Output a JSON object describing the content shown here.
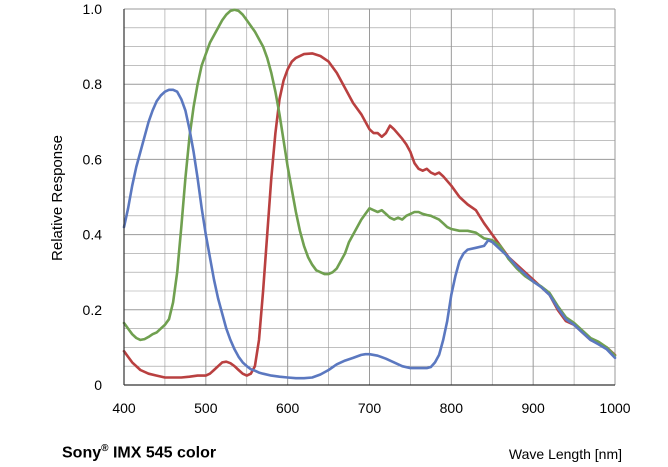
{
  "chart_data": {
    "type": "line",
    "title": "",
    "xlabel": "Wave Length [nm]",
    "ylabel": "Relative Response",
    "xlim": [
      400,
      1000
    ],
    "ylim": [
      0,
      1.0
    ],
    "xticks": [
      "400",
      "500",
      "600",
      "700",
      "800",
      "900",
      "1000"
    ],
    "yticks": [
      "0",
      "0.2",
      "0.4",
      "0.6",
      "0.8",
      "1.0"
    ],
    "grid": true,
    "colors": {
      "red": "#b94040",
      "green": "#70a050",
      "blue": "#5b78c0",
      "grid": "#9a9a9a",
      "axis": "#333333"
    },
    "series": [
      {
        "color": "#b94040",
        "points": [
          [
            400,
            0.09
          ],
          [
            410,
            0.06
          ],
          [
            420,
            0.04
          ],
          [
            430,
            0.03
          ],
          [
            440,
            0.025
          ],
          [
            450,
            0.02
          ],
          [
            460,
            0.02
          ],
          [
            470,
            0.02
          ],
          [
            480,
            0.022
          ],
          [
            490,
            0.025
          ],
          [
            500,
            0.025
          ],
          [
            505,
            0.03
          ],
          [
            510,
            0.04
          ],
          [
            515,
            0.05
          ],
          [
            520,
            0.06
          ],
          [
            525,
            0.062
          ],
          [
            530,
            0.058
          ],
          [
            535,
            0.05
          ],
          [
            540,
            0.04
          ],
          [
            545,
            0.03
          ],
          [
            550,
            0.025
          ],
          [
            555,
            0.03
          ],
          [
            560,
            0.05
          ],
          [
            565,
            0.12
          ],
          [
            570,
            0.25
          ],
          [
            575,
            0.4
          ],
          [
            580,
            0.55
          ],
          [
            585,
            0.67
          ],
          [
            590,
            0.76
          ],
          [
            595,
            0.81
          ],
          [
            600,
            0.84
          ],
          [
            605,
            0.86
          ],
          [
            610,
            0.87
          ],
          [
            620,
            0.88
          ],
          [
            630,
            0.882
          ],
          [
            640,
            0.875
          ],
          [
            650,
            0.86
          ],
          [
            660,
            0.83
          ],
          [
            670,
            0.79
          ],
          [
            680,
            0.75
          ],
          [
            690,
            0.72
          ],
          [
            700,
            0.68
          ],
          [
            705,
            0.67
          ],
          [
            710,
            0.67
          ],
          [
            715,
            0.66
          ],
          [
            720,
            0.67
          ],
          [
            725,
            0.69
          ],
          [
            730,
            0.68
          ],
          [
            740,
            0.655
          ],
          [
            745,
            0.64
          ],
          [
            750,
            0.62
          ],
          [
            755,
            0.59
          ],
          [
            760,
            0.575
          ],
          [
            765,
            0.57
          ],
          [
            770,
            0.575
          ],
          [
            775,
            0.565
          ],
          [
            780,
            0.56
          ],
          [
            785,
            0.565
          ],
          [
            790,
            0.555
          ],
          [
            800,
            0.53
          ],
          [
            810,
            0.5
          ],
          [
            820,
            0.48
          ],
          [
            830,
            0.465
          ],
          [
            840,
            0.43
          ],
          [
            850,
            0.4
          ],
          [
            860,
            0.37
          ],
          [
            870,
            0.34
          ],
          [
            880,
            0.32
          ],
          [
            890,
            0.3
          ],
          [
            900,
            0.28
          ],
          [
            910,
            0.26
          ],
          [
            920,
            0.24
          ],
          [
            930,
            0.2
          ],
          [
            940,
            0.17
          ],
          [
            950,
            0.16
          ],
          [
            960,
            0.14
          ],
          [
            970,
            0.12
          ],
          [
            980,
            0.11
          ],
          [
            990,
            0.1
          ],
          [
            1000,
            0.08
          ]
        ]
      },
      {
        "color": "#70a050",
        "points": [
          [
            400,
            0.165
          ],
          [
            405,
            0.15
          ],
          [
            410,
            0.135
          ],
          [
            415,
            0.125
          ],
          [
            420,
            0.12
          ],
          [
            425,
            0.122
          ],
          [
            430,
            0.128
          ],
          [
            435,
            0.135
          ],
          [
            440,
            0.14
          ],
          [
            445,
            0.15
          ],
          [
            450,
            0.16
          ],
          [
            455,
            0.175
          ],
          [
            460,
            0.22
          ],
          [
            465,
            0.3
          ],
          [
            470,
            0.42
          ],
          [
            475,
            0.55
          ],
          [
            480,
            0.66
          ],
          [
            485,
            0.74
          ],
          [
            490,
            0.8
          ],
          [
            495,
            0.85
          ],
          [
            500,
            0.88
          ],
          [
            505,
            0.91
          ],
          [
            510,
            0.93
          ],
          [
            515,
            0.95
          ],
          [
            520,
            0.97
          ],
          [
            525,
            0.985
          ],
          [
            530,
            0.995
          ],
          [
            535,
            0.998
          ],
          [
            540,
            0.995
          ],
          [
            545,
            0.985
          ],
          [
            550,
            0.97
          ],
          [
            555,
            0.955
          ],
          [
            560,
            0.94
          ],
          [
            565,
            0.92
          ],
          [
            570,
            0.9
          ],
          [
            575,
            0.87
          ],
          [
            580,
            0.83
          ],
          [
            585,
            0.78
          ],
          [
            590,
            0.72
          ],
          [
            595,
            0.65
          ],
          [
            600,
            0.58
          ],
          [
            605,
            0.52
          ],
          [
            610,
            0.46
          ],
          [
            615,
            0.41
          ],
          [
            620,
            0.37
          ],
          [
            625,
            0.34
          ],
          [
            630,
            0.32
          ],
          [
            635,
            0.305
          ],
          [
            640,
            0.3
          ],
          [
            645,
            0.295
          ],
          [
            650,
            0.295
          ],
          [
            655,
            0.3
          ],
          [
            660,
            0.31
          ],
          [
            665,
            0.33
          ],
          [
            670,
            0.35
          ],
          [
            675,
            0.38
          ],
          [
            680,
            0.4
          ],
          [
            685,
            0.42
          ],
          [
            690,
            0.44
          ],
          [
            695,
            0.455
          ],
          [
            700,
            0.47
          ],
          [
            705,
            0.465
          ],
          [
            710,
            0.46
          ],
          [
            715,
            0.465
          ],
          [
            720,
            0.455
          ],
          [
            725,
            0.445
          ],
          [
            730,
            0.44
          ],
          [
            735,
            0.445
          ],
          [
            740,
            0.44
          ],
          [
            745,
            0.45
          ],
          [
            750,
            0.455
          ],
          [
            755,
            0.46
          ],
          [
            760,
            0.46
          ],
          [
            765,
            0.455
          ],
          [
            770,
            0.452
          ],
          [
            775,
            0.45
          ],
          [
            780,
            0.445
          ],
          [
            785,
            0.44
          ],
          [
            790,
            0.43
          ],
          [
            795,
            0.42
          ],
          [
            800,
            0.415
          ],
          [
            810,
            0.41
          ],
          [
            820,
            0.41
          ],
          [
            830,
            0.405
          ],
          [
            840,
            0.39
          ],
          [
            850,
            0.385
          ],
          [
            860,
            0.37
          ],
          [
            870,
            0.335
          ],
          [
            880,
            0.31
          ],
          [
            890,
            0.29
          ],
          [
            900,
            0.275
          ],
          [
            910,
            0.262
          ],
          [
            920,
            0.245
          ],
          [
            930,
            0.21
          ],
          [
            940,
            0.18
          ],
          [
            950,
            0.165
          ],
          [
            960,
            0.145
          ],
          [
            970,
            0.125
          ],
          [
            980,
            0.115
          ],
          [
            990,
            0.1
          ],
          [
            1000,
            0.078
          ]
        ]
      },
      {
        "color": "#5b78c0",
        "points": [
          [
            400,
            0.42
          ],
          [
            405,
            0.47
          ],
          [
            410,
            0.53
          ],
          [
            415,
            0.58
          ],
          [
            420,
            0.62
          ],
          [
            425,
            0.66
          ],
          [
            430,
            0.7
          ],
          [
            435,
            0.73
          ],
          [
            440,
            0.755
          ],
          [
            445,
            0.77
          ],
          [
            450,
            0.78
          ],
          [
            455,
            0.785
          ],
          [
            460,
            0.785
          ],
          [
            465,
            0.78
          ],
          [
            470,
            0.76
          ],
          [
            475,
            0.73
          ],
          [
            480,
            0.68
          ],
          [
            485,
            0.62
          ],
          [
            490,
            0.55
          ],
          [
            495,
            0.47
          ],
          [
            500,
            0.4
          ],
          [
            505,
            0.34
          ],
          [
            510,
            0.28
          ],
          [
            515,
            0.23
          ],
          [
            520,
            0.19
          ],
          [
            525,
            0.15
          ],
          [
            530,
            0.12
          ],
          [
            535,
            0.095
          ],
          [
            540,
            0.075
          ],
          [
            545,
            0.06
          ],
          [
            550,
            0.05
          ],
          [
            555,
            0.042
          ],
          [
            560,
            0.038
          ],
          [
            565,
            0.033
          ],
          [
            570,
            0.03
          ],
          [
            580,
            0.025
          ],
          [
            590,
            0.022
          ],
          [
            600,
            0.02
          ],
          [
            610,
            0.018
          ],
          [
            620,
            0.018
          ],
          [
            630,
            0.02
          ],
          [
            640,
            0.028
          ],
          [
            650,
            0.04
          ],
          [
            660,
            0.055
          ],
          [
            670,
            0.065
          ],
          [
            680,
            0.072
          ],
          [
            690,
            0.08
          ],
          [
            695,
            0.082
          ],
          [
            700,
            0.082
          ],
          [
            710,
            0.078
          ],
          [
            720,
            0.07
          ],
          [
            730,
            0.06
          ],
          [
            740,
            0.05
          ],
          [
            750,
            0.045
          ],
          [
            760,
            0.045
          ],
          [
            770,
            0.045
          ],
          [
            775,
            0.048
          ],
          [
            780,
            0.06
          ],
          [
            785,
            0.08
          ],
          [
            790,
            0.12
          ],
          [
            795,
            0.17
          ],
          [
            800,
            0.24
          ],
          [
            805,
            0.29
          ],
          [
            810,
            0.33
          ],
          [
            815,
            0.35
          ],
          [
            820,
            0.36
          ],
          [
            830,
            0.365
          ],
          [
            840,
            0.37
          ],
          [
            845,
            0.385
          ],
          [
            850,
            0.38
          ],
          [
            860,
            0.36
          ],
          [
            870,
            0.34
          ],
          [
            880,
            0.315
          ],
          [
            890,
            0.295
          ],
          [
            900,
            0.275
          ],
          [
            910,
            0.26
          ],
          [
            920,
            0.24
          ],
          [
            930,
            0.205
          ],
          [
            940,
            0.175
          ],
          [
            950,
            0.16
          ],
          [
            960,
            0.14
          ],
          [
            970,
            0.12
          ],
          [
            980,
            0.108
          ],
          [
            990,
            0.095
          ],
          [
            1000,
            0.072
          ]
        ]
      }
    ]
  },
  "caption": {
    "left_main": "Sony",
    "left_reg": "®",
    "left_rest": " IMX 545 color",
    "right": "Wave Length [nm]"
  }
}
